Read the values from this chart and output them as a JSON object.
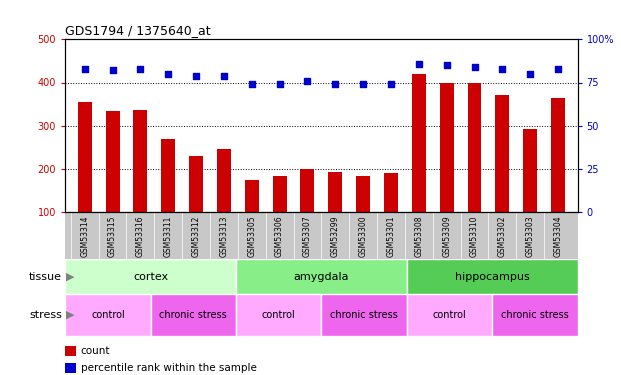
{
  "title": "GDS1794 / 1375640_at",
  "samples": [
    "GSM53314",
    "GSM53315",
    "GSM53316",
    "GSM53311",
    "GSM53312",
    "GSM53313",
    "GSM53305",
    "GSM53306",
    "GSM53307",
    "GSM53299",
    "GSM53300",
    "GSM53301",
    "GSM53308",
    "GSM53309",
    "GSM53310",
    "GSM53302",
    "GSM53303",
    "GSM53304"
  ],
  "counts": [
    355,
    333,
    336,
    270,
    230,
    245,
    175,
    183,
    200,
    192,
    183,
    190,
    420,
    400,
    400,
    370,
    293,
    365
  ],
  "percentiles": [
    83,
    82,
    83,
    80,
    79,
    79,
    74,
    74,
    76,
    74,
    74,
    74,
    86,
    85,
    84,
    83,
    80,
    83
  ],
  "bar_color": "#cc0000",
  "dot_color": "#0000cc",
  "ylim_left": [
    100,
    500
  ],
  "ylim_right": [
    0,
    100
  ],
  "yticks_left": [
    100,
    200,
    300,
    400,
    500
  ],
  "yticks_right": [
    0,
    25,
    50,
    75,
    100
  ],
  "grid_values": [
    200,
    300,
    400
  ],
  "tissue_groups": [
    {
      "label": "cortex",
      "start": 0,
      "end": 6,
      "color": "#ccffcc"
    },
    {
      "label": "amygdala",
      "start": 6,
      "end": 12,
      "color": "#88ee88"
    },
    {
      "label": "hippocampus",
      "start": 12,
      "end": 18,
      "color": "#55cc55"
    }
  ],
  "stress_groups": [
    {
      "label": "control",
      "start": 0,
      "end": 3,
      "color": "#ffaaff"
    },
    {
      "label": "chronic stress",
      "start": 3,
      "end": 6,
      "color": "#ee66ee"
    },
    {
      "label": "control",
      "start": 6,
      "end": 9,
      "color": "#ffaaff"
    },
    {
      "label": "chronic stress",
      "start": 9,
      "end": 12,
      "color": "#ee66ee"
    },
    {
      "label": "control",
      "start": 12,
      "end": 15,
      "color": "#ffaaff"
    },
    {
      "label": "chronic stress",
      "start": 15,
      "end": 18,
      "color": "#ee66ee"
    }
  ],
  "legend_count_label": "count",
  "legend_pct_label": "percentile rank within the sample",
  "tissue_label": "tissue",
  "stress_label": "stress",
  "xtick_bg_color": "#c8c8c8",
  "label_area_bg": "#f0f0f0"
}
